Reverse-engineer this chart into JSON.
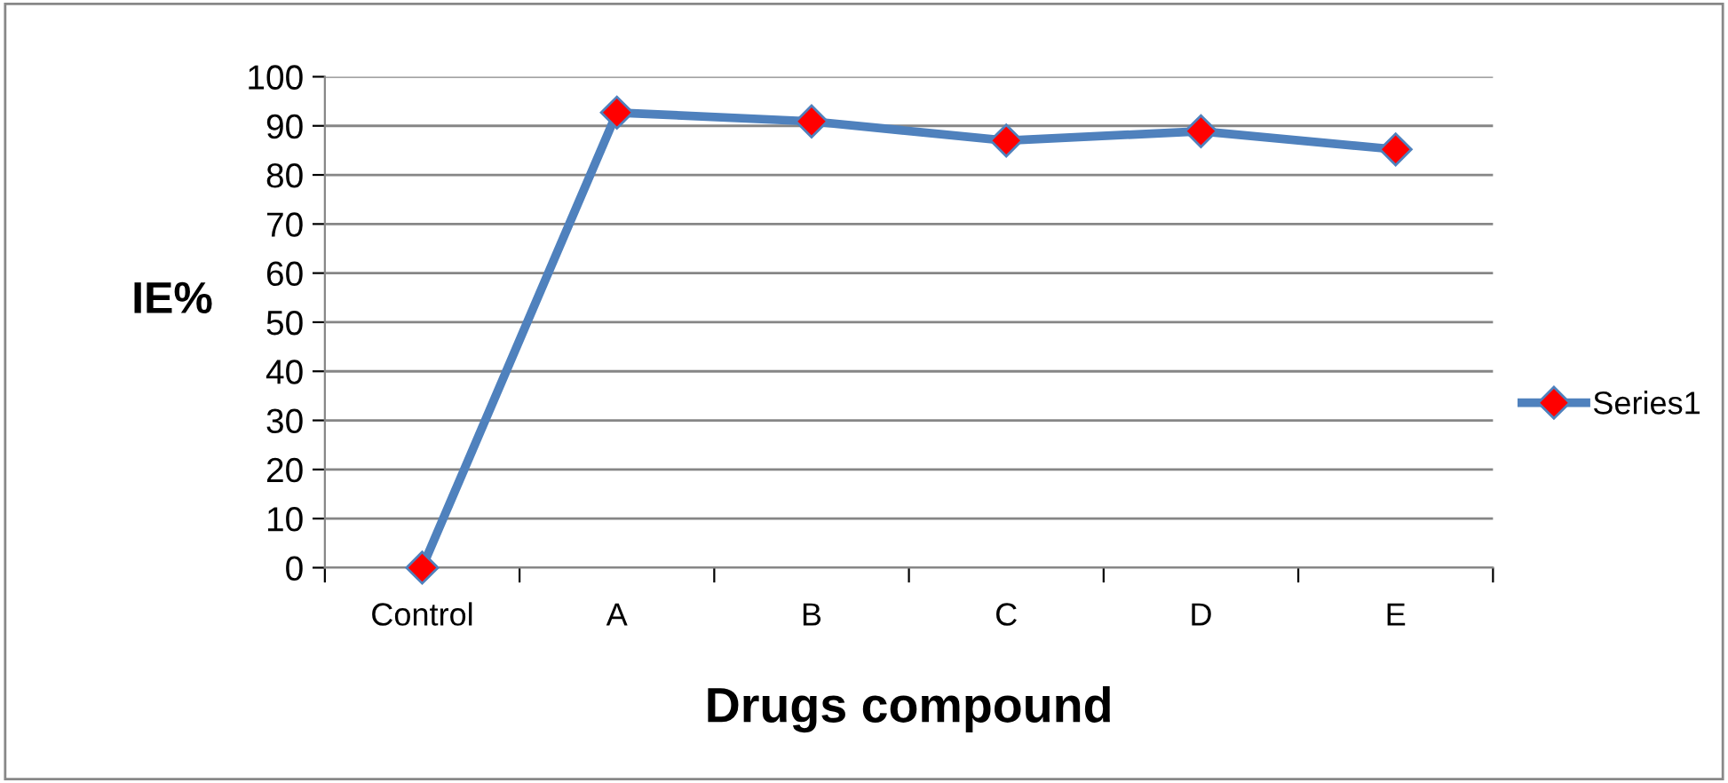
{
  "chart_data": {
    "type": "line",
    "xlabel": "Drugs compound",
    "ylabel": "IE%",
    "categories": [
      "Control",
      "A",
      "B",
      "C",
      "D",
      "E"
    ],
    "series": [
      {
        "name": "Series1",
        "color": "#4f81bd",
        "colors": [
          "#ff0000",
          "#ff0000",
          "#ff0000",
          "#ff0000",
          "#ff0000",
          "#ff0000"
        ],
        "values": [
          0,
          92.7,
          90.9,
          87,
          88.9,
          85.2
        ]
      }
    ],
    "ylim": [
      0,
      100
    ],
    "yticks": [
      0,
      10,
      20,
      30,
      40,
      50,
      60,
      70,
      80,
      90,
      100
    ],
    "grid": "y",
    "legend": "right",
    "marker": "diamond",
    "line_style": "solid"
  }
}
